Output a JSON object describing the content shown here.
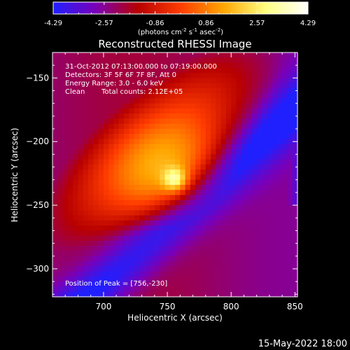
{
  "chart_data": {
    "type": "heatmap",
    "title": "Reconstructed RHESSI Image",
    "xlabel": "Heliocentric X (arcsec)",
    "ylabel": "Heliocentric Y (arcsec)",
    "xlim": [
      660,
      852
    ],
    "ylim": [
      -322,
      -130
    ],
    "x_ticks": [
      700,
      750,
      800,
      850
    ],
    "y_ticks": [
      -150,
      -200,
      -250,
      -300
    ],
    "colorbar": {
      "min": -4.29,
      "max": 4.29,
      "ticks": [
        "-4.29",
        "-2.57",
        "-0.86",
        "0.86",
        "2.57",
        "4.29"
      ],
      "units_label_parts": [
        "(photons cm",
        "-2",
        " s",
        "-1",
        " asec",
        "-2",
        ")"
      ],
      "colormap": [
        "#2020ff",
        "#7a00b8",
        "#b80000",
        "#ff3c00",
        "#ffa500",
        "#ffff80",
        "#ffffff"
      ]
    },
    "annotations": {
      "time_range": "31-Oct-2012 07:13:00.000 to 07:19:00.000",
      "detectors": "Detectors: 3F 5F 6F 7F 8F, Att 0",
      "energy_range": "Energy Range: 3.0 - 6.0 keV",
      "method": "Clean",
      "total_counts": "Total counts: 2.12E+05",
      "peak_position": "Position of Peak = [756,-230]"
    },
    "peak": {
      "x": 756,
      "y": -230,
      "value": 4.29
    },
    "footer_date": "15-May-2022 18:00"
  }
}
